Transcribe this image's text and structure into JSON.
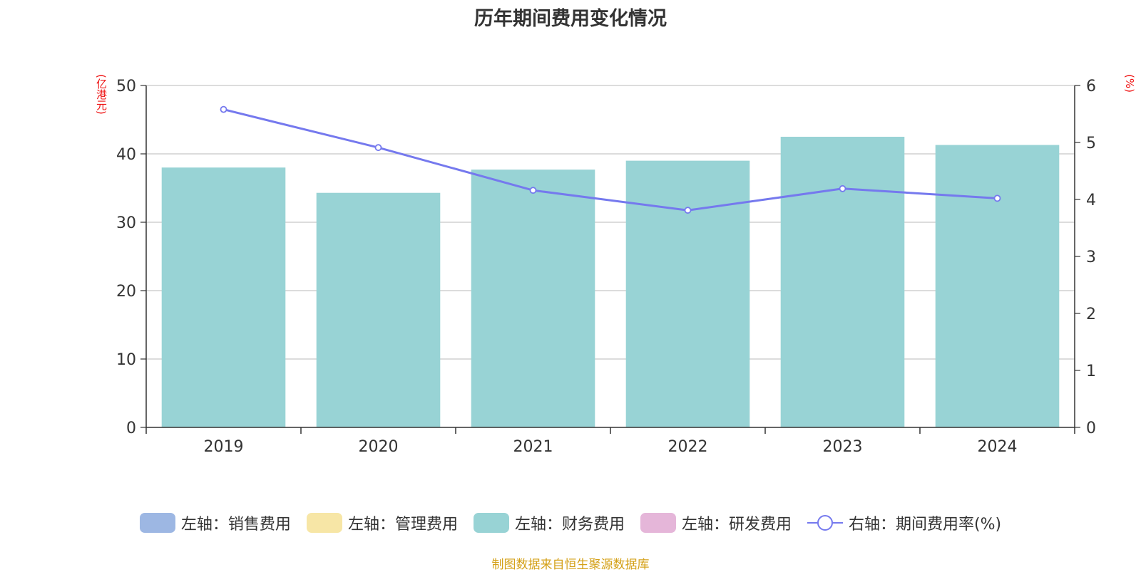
{
  "title": "历年期间费用变化情况",
  "unit_left": "(亿港元)",
  "unit_right": "(%)",
  "source": "制图数据来自恒生聚源数据库",
  "legend": [
    {
      "label": "左轴：销售费用",
      "color": "#9db7e3",
      "kind": "bar"
    },
    {
      "label": "左轴：管理费用",
      "color": "#f7e6a6",
      "kind": "bar"
    },
    {
      "label": "左轴：财务费用",
      "color": "#98d3d5",
      "kind": "bar"
    },
    {
      "label": "左轴：研发费用",
      "color": "#e5b6d9",
      "kind": "bar"
    },
    {
      "label": "右轴：期间费用率(%)",
      "color": "#7579ee",
      "kind": "line"
    }
  ],
  "chart_data": {
    "type": "bar",
    "title": "历年期间费用变化情况",
    "categories": [
      "2019",
      "2020",
      "2021",
      "2022",
      "2023",
      "2024"
    ],
    "series": [
      {
        "name": "左轴：财务费用",
        "axis": "left",
        "type": "bar",
        "color": "#98d3d5",
        "values": [
          38.0,
          34.3,
          37.7,
          39.0,
          42.5,
          41.3
        ]
      },
      {
        "name": "右轴：期间费用率(%)",
        "axis": "right",
        "type": "line",
        "color": "#7579ee",
        "values": [
          5.58,
          4.91,
          4.16,
          3.81,
          4.19,
          4.02
        ]
      }
    ],
    "y_left": {
      "label": "(亿港元)",
      "lim": [
        0,
        50
      ],
      "ticks": [
        0,
        10,
        20,
        30,
        40,
        50
      ]
    },
    "y_right": {
      "label": "(%)",
      "lim": [
        0,
        6
      ],
      "ticks": [
        0,
        1,
        2,
        3,
        4,
        5,
        6
      ]
    },
    "grid": true,
    "legend_position": "bottom"
  }
}
